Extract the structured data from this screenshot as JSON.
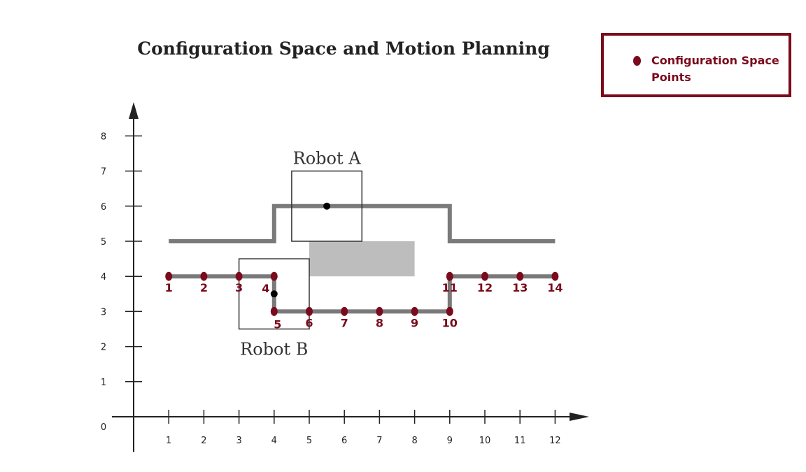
{
  "title": "Configuration Space and Motion Planning",
  "legend": {
    "label": "Configuration Space Points",
    "color": "#7a0a1c"
  },
  "colors": {
    "path": "#7a7a7a",
    "obstacle": "#bdbdbd",
    "point": "#7a0a1c",
    "axis": "#222222"
  },
  "robots": {
    "a": {
      "label": "Robot A",
      "x": [
        4.5,
        6.5
      ],
      "y": [
        5,
        7
      ],
      "ref": [
        5.5,
        6
      ]
    },
    "b": {
      "label": "Robot B",
      "x": [
        3,
        5
      ],
      "y": [
        2.5,
        4.5
      ],
      "ref": [
        4,
        3.5
      ]
    }
  },
  "chart_data": {
    "type": "scatter",
    "title": "Configuration Space and Motion Planning",
    "x_ticks": [
      1,
      2,
      3,
      4,
      5,
      6,
      7,
      8,
      9,
      10,
      11,
      12
    ],
    "y_ticks": [
      0,
      1,
      2,
      3,
      4,
      5,
      6,
      7,
      8
    ],
    "upper_path": [
      [
        1,
        5
      ],
      [
        4,
        5
      ],
      [
        4,
        6
      ],
      [
        9,
        6
      ],
      [
        9,
        5
      ],
      [
        12,
        5
      ]
    ],
    "lower_path": [
      [
        1,
        4
      ],
      [
        4,
        4
      ],
      [
        4,
        3
      ],
      [
        9,
        3
      ],
      [
        9,
        4
      ],
      [
        12,
        4
      ]
    ],
    "obstacle": {
      "x": [
        5,
        8
      ],
      "y": [
        4,
        5
      ]
    },
    "series": [
      {
        "name": "Configuration Space Points",
        "points": [
          {
            "label": "1",
            "x": 1,
            "y": 4
          },
          {
            "label": "2",
            "x": 2,
            "y": 4
          },
          {
            "label": "3",
            "x": 3,
            "y": 4
          },
          {
            "label": "4",
            "x": 4,
            "y": 4
          },
          {
            "label": "5",
            "x": 4,
            "y": 3
          },
          {
            "label": "6",
            "x": 5,
            "y": 3
          },
          {
            "label": "7",
            "x": 6,
            "y": 3
          },
          {
            "label": "8",
            "x": 7,
            "y": 3
          },
          {
            "label": "9",
            "x": 8,
            "y": 3
          },
          {
            "label": "10",
            "x": 9,
            "y": 3
          },
          {
            "label": "11",
            "x": 9,
            "y": 4
          },
          {
            "label": "12",
            "x": 10,
            "y": 4
          },
          {
            "label": "13",
            "x": 11,
            "y": 4
          },
          {
            "label": "14",
            "x": 12,
            "y": 4
          }
        ]
      }
    ]
  }
}
